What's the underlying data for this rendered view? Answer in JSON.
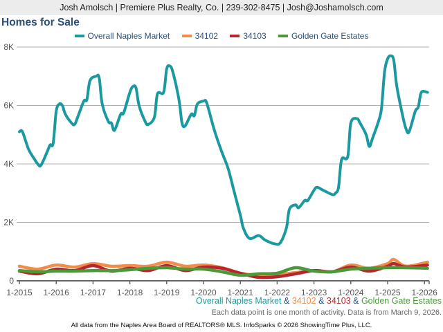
{
  "header": {
    "contact": "Josh Amolsch | Premiere Plus Realty, Co. | 239-302-8475 | Josh@Joshamolsch.com"
  },
  "chart_data": {
    "type": "line",
    "title": "Homes for Sale",
    "xlabel": "",
    "ylabel": "",
    "ylim": [
      0,
      8000
    ],
    "xlim": [
      "2015-01",
      "2026-02"
    ],
    "yticks": [
      {
        "v": 0,
        "label": "0"
      },
      {
        "v": 2000,
        "label": "2K"
      },
      {
        "v": 4000,
        "label": "4K"
      },
      {
        "v": 6000,
        "label": "6K"
      },
      {
        "v": 8000,
        "label": "8K"
      }
    ],
    "xticks": [
      "1-2015",
      "1-2016",
      "1-2017",
      "1-2018",
      "1-2019",
      "1-2020",
      "1-2021",
      "1-2022",
      "1-2023",
      "1-2024",
      "1-2025",
      "1-2026"
    ],
    "grid": true,
    "legend_position": "top",
    "series": [
      {
        "name": "Overall Naples Market",
        "color": "#1a9aa0",
        "points": [
          [
            "2015-01",
            5100
          ],
          [
            "2015-02",
            5100
          ],
          [
            "2015-04",
            4500
          ],
          [
            "2015-06",
            4150
          ],
          [
            "2015-07",
            4000
          ],
          [
            "2015-08",
            3950
          ],
          [
            "2015-10",
            4400
          ],
          [
            "2015-11",
            4650
          ],
          [
            "2015-12",
            4700
          ],
          [
            "2016-01",
            5800
          ],
          [
            "2016-02",
            6050
          ],
          [
            "2016-03",
            6000
          ],
          [
            "2016-04",
            5700
          ],
          [
            "2016-06",
            5400
          ],
          [
            "2016-07",
            5350
          ],
          [
            "2016-08",
            5600
          ],
          [
            "2016-10",
            6150
          ],
          [
            "2016-11",
            6200
          ],
          [
            "2016-12",
            6850
          ],
          [
            "2017-02",
            7000
          ],
          [
            "2017-03",
            6950
          ],
          [
            "2017-04",
            6050
          ],
          [
            "2017-06",
            5450
          ],
          [
            "2017-07",
            5400
          ],
          [
            "2017-08",
            5150
          ],
          [
            "2017-10",
            5700
          ],
          [
            "2017-11",
            5750
          ],
          [
            "2018-01",
            6450
          ],
          [
            "2018-02",
            6650
          ],
          [
            "2018-03",
            6600
          ],
          [
            "2018-04",
            6000
          ],
          [
            "2018-06",
            5450
          ],
          [
            "2018-07",
            5350
          ],
          [
            "2018-09",
            5600
          ],
          [
            "2018-10",
            6400
          ],
          [
            "2018-12",
            6450
          ],
          [
            "2019-01",
            7250
          ],
          [
            "2019-02",
            7350
          ],
          [
            "2019-03",
            7150
          ],
          [
            "2019-05",
            6200
          ],
          [
            "2019-06",
            5400
          ],
          [
            "2019-07",
            5300
          ],
          [
            "2019-09",
            5700
          ],
          [
            "2019-10",
            5650
          ],
          [
            "2019-11",
            6050
          ],
          [
            "2020-01",
            6150
          ],
          [
            "2020-02",
            6100
          ],
          [
            "2020-04",
            5350
          ],
          [
            "2020-05",
            5000
          ],
          [
            "2020-07",
            4400
          ],
          [
            "2020-09",
            3850
          ],
          [
            "2020-11",
            3050
          ],
          [
            "2021-01",
            2250
          ],
          [
            "2021-02",
            1800
          ],
          [
            "2021-04",
            1450
          ],
          [
            "2021-07",
            1550
          ],
          [
            "2021-09",
            1400
          ],
          [
            "2021-12",
            1270
          ],
          [
            "2022-02",
            1300
          ],
          [
            "2022-04",
            1800
          ],
          [
            "2022-05",
            2450
          ],
          [
            "2022-07",
            2600
          ],
          [
            "2022-08",
            2500
          ],
          [
            "2022-10",
            2750
          ],
          [
            "2022-11",
            2750
          ],
          [
            "2023-01",
            3100
          ],
          [
            "2023-02",
            3200
          ],
          [
            "2023-04",
            3100
          ],
          [
            "2023-07",
            2950
          ],
          [
            "2023-08",
            3000
          ],
          [
            "2023-09",
            3200
          ],
          [
            "2023-10",
            4150
          ],
          [
            "2023-12",
            4250
          ],
          [
            "2024-01",
            5400
          ],
          [
            "2024-03",
            5550
          ],
          [
            "2024-04",
            5400
          ],
          [
            "2024-06",
            5000
          ],
          [
            "2024-07",
            4600
          ],
          [
            "2024-08",
            4850
          ],
          [
            "2024-10",
            5450
          ],
          [
            "2024-11",
            5900
          ],
          [
            "2024-12",
            7150
          ],
          [
            "2025-01",
            7600
          ],
          [
            "2025-02",
            7700
          ],
          [
            "2025-03",
            7550
          ],
          [
            "2025-04",
            6650
          ],
          [
            "2025-06",
            5600
          ],
          [
            "2025-07",
            5200
          ],
          [
            "2025-08",
            5100
          ],
          [
            "2025-10",
            5800
          ],
          [
            "2025-11",
            5950
          ],
          [
            "2025-12",
            6450
          ],
          [
            "2026-02",
            6450
          ]
        ]
      },
      {
        "name": "34102",
        "color": "#f28c4a",
        "points": [
          [
            "2015-01",
            500
          ],
          [
            "2015-07",
            400
          ],
          [
            "2016-01",
            540
          ],
          [
            "2016-07",
            470
          ],
          [
            "2017-01",
            590
          ],
          [
            "2017-07",
            500
          ],
          [
            "2018-01",
            520
          ],
          [
            "2018-07",
            500
          ],
          [
            "2019-01",
            640
          ],
          [
            "2019-07",
            500
          ],
          [
            "2020-01",
            540
          ],
          [
            "2020-07",
            450
          ],
          [
            "2021-01",
            260
          ],
          [
            "2021-07",
            190
          ],
          [
            "2022-01",
            210
          ],
          [
            "2022-07",
            280
          ],
          [
            "2023-01",
            350
          ],
          [
            "2023-07",
            310
          ],
          [
            "2024-01",
            540
          ],
          [
            "2024-07",
            430
          ],
          [
            "2025-01",
            590
          ],
          [
            "2025-03",
            730
          ],
          [
            "2025-07",
            500
          ],
          [
            "2026-02",
            640
          ]
        ]
      },
      {
        "name": "34103",
        "color": "#b5272d",
        "points": [
          [
            "2015-01",
            330
          ],
          [
            "2015-07",
            240
          ],
          [
            "2016-01",
            400
          ],
          [
            "2016-07",
            350
          ],
          [
            "2017-01",
            520
          ],
          [
            "2017-07",
            330
          ],
          [
            "2018-01",
            430
          ],
          [
            "2018-07",
            350
          ],
          [
            "2019-01",
            520
          ],
          [
            "2019-07",
            350
          ],
          [
            "2020-01",
            470
          ],
          [
            "2020-07",
            430
          ],
          [
            "2021-01",
            260
          ],
          [
            "2021-07",
            120
          ],
          [
            "2022-01",
            140
          ],
          [
            "2022-07",
            240
          ],
          [
            "2023-01",
            350
          ],
          [
            "2023-07",
            310
          ],
          [
            "2024-01",
            470
          ],
          [
            "2024-07",
            330
          ],
          [
            "2025-01",
            500
          ],
          [
            "2025-03",
            590
          ],
          [
            "2025-07",
            470
          ],
          [
            "2026-02",
            540
          ]
        ]
      },
      {
        "name": "Golden Gate Estates",
        "color": "#4a9a3a",
        "points": [
          [
            "2015-01",
            350
          ],
          [
            "2015-07",
            310
          ],
          [
            "2016-01",
            330
          ],
          [
            "2016-07",
            330
          ],
          [
            "2017-01",
            350
          ],
          [
            "2017-07",
            350
          ],
          [
            "2018-01",
            380
          ],
          [
            "2018-07",
            430
          ],
          [
            "2019-01",
            450
          ],
          [
            "2019-07",
            400
          ],
          [
            "2020-01",
            400
          ],
          [
            "2020-07",
            310
          ],
          [
            "2021-01",
            190
          ],
          [
            "2021-07",
            240
          ],
          [
            "2022-01",
            260
          ],
          [
            "2022-07",
            450
          ],
          [
            "2023-01",
            330
          ],
          [
            "2023-07",
            310
          ],
          [
            "2024-01",
            400
          ],
          [
            "2024-07",
            430
          ],
          [
            "2025-01",
            450
          ],
          [
            "2025-07",
            450
          ],
          [
            "2026-02",
            430
          ]
        ]
      }
    ]
  },
  "footer": {
    "series_line": [
      "Overall Naples Market",
      " & ",
      "34102",
      " & ",
      "34103",
      " & ",
      "Golden Gate Estates"
    ],
    "note": "Each data point is one month of activity. Data is from March 9, 2026.",
    "source": "All data from the Naples Area Board of REALTORS® MLS. InfoSparks © 2026 ShowingTime Plus, LLC."
  }
}
